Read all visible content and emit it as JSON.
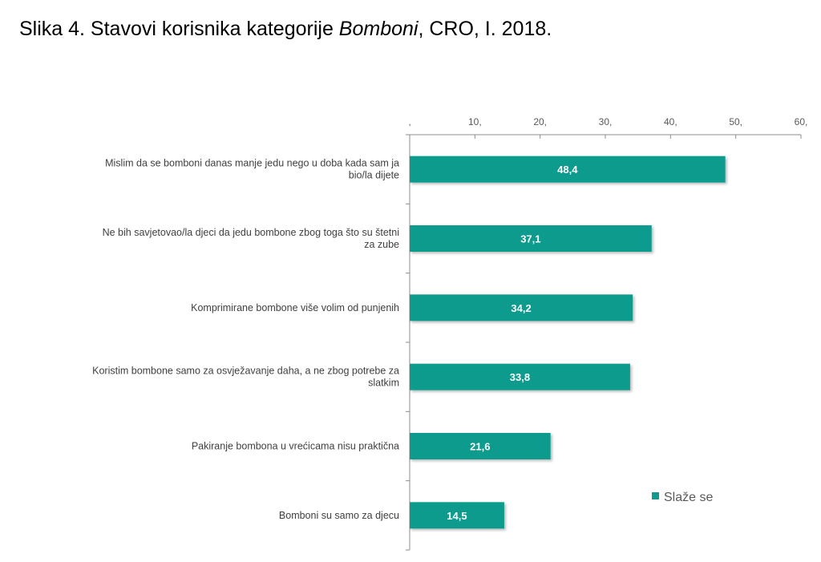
{
  "title": {
    "prefix": "Slika 4. Stavovi korisnika kategorije ",
    "emphasis": "Bomboni",
    "suffix": ", CRO, I. 2018."
  },
  "colors": {
    "bar": "#0E9B8D",
    "axis": "#8C8C8C",
    "text": "#404040"
  },
  "chart_data": {
    "type": "bar",
    "orientation": "horizontal",
    "axis_position": "top",
    "xlim": [
      0,
      60
    ],
    "ticks": [
      0,
      10,
      20,
      30,
      40,
      50,
      60
    ],
    "tick_labels": [
      ",",
      "10,",
      "20,",
      "30,",
      "40,",
      "50,",
      "60,"
    ],
    "grid": false,
    "legend_position": "right",
    "categories": [
      "Mislim da se bomboni danas manje jedu nego u doba kada sam ja bio/la dijete",
      "Ne bih savjetovao/la djeci da jedu bombone zbog toga što su štetni za zube",
      "Komprimirane bombone više volim od punjenih",
      "Koristim bombone samo za osvježavanje daha, a ne zbog potrebe za slatkim",
      "Pakiranje bombona u vrećicama nisu praktična",
      "Bomboni su samo za djecu"
    ],
    "series": [
      {
        "name": "Slaže se",
        "values": [
          48.4,
          37.1,
          34.2,
          33.8,
          21.6,
          14.5
        ],
        "value_labels": [
          "48,4",
          "37,1",
          "34,2",
          "33,8",
          "21,6",
          "14,5"
        ]
      }
    ]
  }
}
